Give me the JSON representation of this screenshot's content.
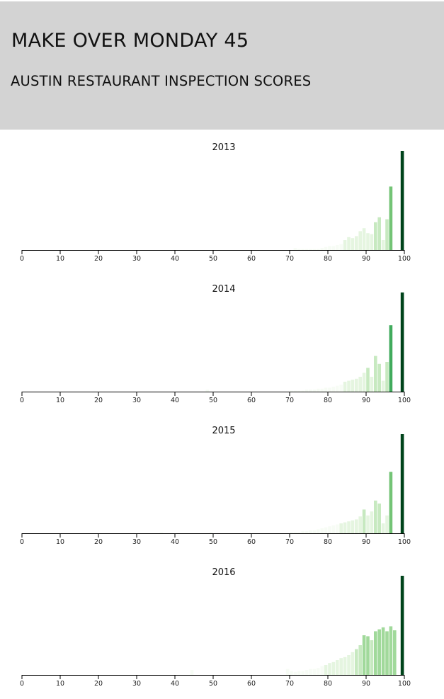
{
  "header": {
    "title": "MAKE OVER MONDAY 45",
    "subtitle": "AUSTIN RESTAURANT INSPECTION SCORES"
  },
  "colors": {
    "header_bg": "#d3d3d3",
    "axis": "#000000",
    "bar_scale": [
      "#f7fcf5",
      "#e5f5e0",
      "#c7e9c0",
      "#a1d99b",
      "#74c476",
      "#41ab5d",
      "#238b45",
      "#00441b"
    ]
  },
  "chart_data": [
    {
      "type": "bar",
      "title": "2013",
      "xlabel": "",
      "ylabel": "",
      "xlim": [
        0,
        100
      ],
      "ticks": [
        "0",
        "10",
        "20",
        "30",
        "40",
        "50",
        "60",
        "70",
        "80",
        "90",
        "100"
      ],
      "x": [
        72,
        73,
        74,
        75,
        76,
        77,
        78,
        79,
        80,
        81,
        82,
        83,
        84,
        85,
        86,
        87,
        88,
        89,
        90,
        91,
        92,
        93,
        94,
        95,
        96,
        97,
        98,
        99,
        100
      ],
      "values": [
        2,
        1,
        1,
        1,
        1,
        1,
        1,
        2,
        3,
        4,
        4,
        5,
        6,
        10,
        13,
        12,
        14,
        19,
        22,
        17,
        16,
        28,
        33,
        10,
        31,
        64,
        0,
        0,
        100
      ]
    },
    {
      "type": "bar",
      "title": "2014",
      "xlabel": "",
      "ylabel": "",
      "xlim": [
        0,
        100
      ],
      "ticks": [
        "0",
        "10",
        "20",
        "30",
        "40",
        "50",
        "60",
        "70",
        "80",
        "90",
        "100"
      ],
      "x": [
        49,
        71,
        72,
        73,
        74,
        75,
        76,
        77,
        78,
        79,
        80,
        81,
        82,
        83,
        84,
        85,
        86,
        87,
        88,
        89,
        90,
        91,
        92,
        93,
        94,
        95,
        96,
        97,
        98,
        99,
        100
      ],
      "values": [
        2,
        1,
        1,
        1,
        1,
        2,
        2,
        2,
        3,
        3,
        4,
        4,
        5,
        6,
        7,
        10,
        11,
        12,
        13,
        15,
        19,
        24,
        15,
        36,
        28,
        11,
        30,
        67,
        0,
        0,
        100
      ]
    },
    {
      "type": "bar",
      "title": "2015",
      "xlabel": "",
      "ylabel": "",
      "xlim": [
        0,
        100
      ],
      "ticks": [
        "0",
        "10",
        "20",
        "30",
        "40",
        "50",
        "60",
        "70",
        "80",
        "90",
        "100"
      ],
      "x": [
        37,
        50,
        71,
        72,
        73,
        74,
        75,
        76,
        77,
        78,
        79,
        80,
        81,
        82,
        83,
        84,
        85,
        86,
        87,
        88,
        89,
        90,
        91,
        92,
        93,
        94,
        95,
        96,
        97,
        98,
        99,
        100
      ],
      "values": [
        1,
        1,
        1,
        1,
        1,
        2,
        2,
        3,
        3,
        4,
        5,
        6,
        7,
        8,
        9,
        10,
        11,
        12,
        13,
        14,
        17,
        24,
        18,
        22,
        33,
        30,
        10,
        18,
        62,
        0,
        0,
        100
      ]
    },
    {
      "type": "bar",
      "title": "2016",
      "xlabel": "",
      "ylabel": "",
      "xlim": [
        0,
        100
      ],
      "ticks": [
        "0",
        "10",
        "20",
        "30",
        "40",
        "50",
        "60",
        "70",
        "80",
        "90",
        "100"
      ],
      "x": [
        45,
        70,
        71,
        72,
        73,
        74,
        75,
        76,
        77,
        78,
        79,
        80,
        81,
        82,
        83,
        84,
        85,
        86,
        87,
        88,
        89,
        90,
        91,
        92,
        93,
        94,
        95,
        96,
        97,
        98,
        99,
        100
      ],
      "values": [
        5,
        6,
        4,
        3,
        4,
        4,
        5,
        6,
        6,
        7,
        9,
        10,
        12,
        13,
        15,
        17,
        18,
        20,
        23,
        26,
        30,
        40,
        39,
        35,
        44,
        46,
        48,
        44,
        49,
        45,
        0,
        100
      ]
    }
  ]
}
